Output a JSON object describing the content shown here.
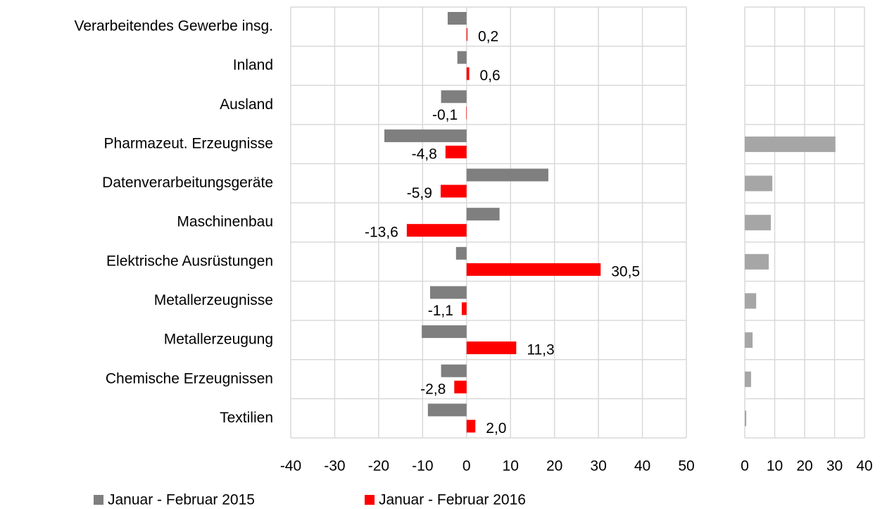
{
  "chart_data": [
    {
      "type": "bar",
      "orientation": "horizontal",
      "categories": [
        "Verarbeitendes Gewerbe insg.",
        "Inland",
        "Ausland",
        "Pharmazeut. Erzeugnisse",
        "Datenverarbeitungsgeräte",
        "Maschinenbau",
        "Elektrische Ausrüstungen",
        "Metallerzeugnisse",
        "Metallerzeugung",
        "Chemische Erzeugnissen",
        "Textilien"
      ],
      "series": [
        {
          "name": "Januar - Februar 2015",
          "color": "#7f7f7f",
          "values": [
            -4.3,
            -2.1,
            -5.8,
            -18.7,
            18.6,
            7.5,
            -2.4,
            -8.3,
            -10.2,
            -5.8,
            -8.8
          ]
        },
        {
          "name": "Januar - Februar 2016",
          "color": "#ff0000",
          "values": [
            0.2,
            0.6,
            -0.1,
            -4.8,
            -5.9,
            -13.6,
            30.5,
            -1.1,
            11.3,
            -2.8,
            2.0
          ],
          "value_labels": [
            "0,2",
            "0,6",
            "-0,1",
            "-4,8",
            "-5,9",
            "-13,6",
            "30,5",
            "-1,1",
            "11,3",
            "-2,8",
            "2,0"
          ]
        }
      ],
      "xlim": [
        -40,
        50
      ],
      "xticks": [
        -40,
        -30,
        -20,
        -10,
        0,
        10,
        20,
        30,
        40,
        50
      ],
      "grid": true,
      "legend": "bottom"
    },
    {
      "type": "bar",
      "orientation": "horizontal",
      "series": [
        {
          "color": "#a6a6a6",
          "values": [
            null,
            null,
            null,
            30.3,
            9.2,
            8.7,
            8.0,
            3.8,
            2.6,
            2.1,
            0.5
          ]
        }
      ],
      "xlim": [
        0,
        40
      ],
      "xticks": [
        0,
        10,
        20,
        30,
        40
      ],
      "grid": true
    }
  ]
}
